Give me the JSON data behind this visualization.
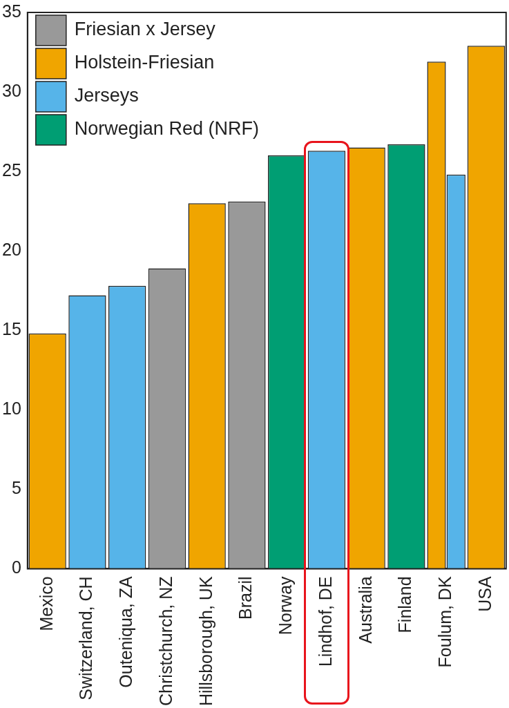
{
  "chart_data": {
    "type": "bar",
    "categories": [
      "Mexico",
      "Switzerland, CH",
      "Outeniqua, ZA",
      "Christchurch, NZ",
      "Hillsborough, UK",
      "Brazil",
      "Norway",
      "Lindhof, DE",
      "Australia",
      "Finland",
      "Foulum, DK",
      "USA"
    ],
    "series": [
      {
        "name": "Friesian x Jersey",
        "color": "#999999",
        "values": [
          null,
          null,
          null,
          18.9,
          null,
          23.1,
          null,
          null,
          null,
          null,
          null,
          null
        ]
      },
      {
        "name": "Holstein-Friesian",
        "color": "#f0a500",
        "values": [
          14.8,
          null,
          null,
          null,
          23.0,
          null,
          null,
          null,
          26.5,
          null,
          31.9,
          32.9
        ]
      },
      {
        "name": "Jerseys",
        "color": "#56b4e9",
        "values": [
          null,
          17.2,
          17.8,
          null,
          null,
          null,
          null,
          26.3,
          null,
          null,
          24.8,
          null
        ]
      },
      {
        "name": "Norwegian Red (NRF)",
        "color": "#009e73",
        "values": [
          null,
          null,
          null,
          null,
          null,
          null,
          26.0,
          null,
          null,
          26.7,
          null,
          null
        ]
      }
    ],
    "ylim": [
      0,
      35
    ],
    "yticks": [
      0,
      5,
      10,
      15,
      20,
      25,
      30,
      35
    ],
    "grid": false,
    "legend": "top left"
  }
}
